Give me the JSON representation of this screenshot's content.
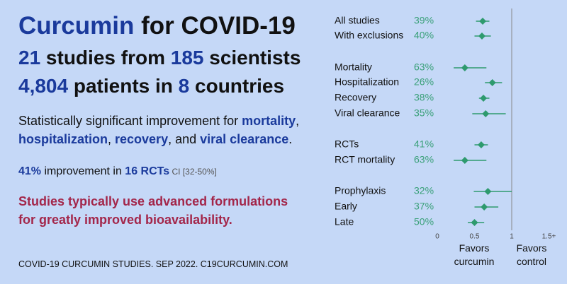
{
  "summary": {
    "title": [
      "Curcumin",
      " for COVID-19"
    ],
    "studies": [
      "21",
      " studies from ",
      "185",
      " scientists"
    ],
    "patients": [
      "4,804",
      " patients in ",
      "8",
      " countries"
    ],
    "finding": [
      "Statistically significant improvement for ",
      "mortality",
      ", ",
      "hospitalization",
      ", ",
      "recovery",
      ", and ",
      "viral clearance",
      "."
    ],
    "rct": [
      "41%",
      " improvement in ",
      "16 RCTs",
      " CI [32-50%]"
    ],
    "note": "Studies typically use advanced formulations for greatly improved bioavailability.",
    "footer": "COVID-19 CURCUMIN STUDIES. SEP 2022. C19CURCUMIN.COM"
  },
  "chart_data": {
    "type": "forest",
    "color": "#2e9a6e",
    "rows": [
      {
        "label": "All studies",
        "improvement": "39%",
        "value": 0.61,
        "ci": [
          0.52,
          0.7
        ]
      },
      {
        "label": "With exclusions",
        "improvement": "40%",
        "value": 0.6,
        "ci": [
          0.5,
          0.72
        ]
      },
      {
        "label": "Mortality",
        "improvement": "63%",
        "value": 0.37,
        "ci": [
          0.22,
          0.66
        ]
      },
      {
        "label": "Hospitalization",
        "improvement": "26%",
        "value": 0.74,
        "ci": [
          0.64,
          0.87
        ]
      },
      {
        "label": "Recovery",
        "improvement": "38%",
        "value": 0.62,
        "ci": [
          0.56,
          0.7
        ]
      },
      {
        "label": "Viral clearance",
        "improvement": "35%",
        "value": 0.65,
        "ci": [
          0.47,
          0.92
        ]
      },
      {
        "label": "RCTs",
        "improvement": "41%",
        "value": 0.59,
        "ci": [
          0.5,
          0.68
        ]
      },
      {
        "label": "RCT mortality",
        "improvement": "63%",
        "value": 0.37,
        "ci": [
          0.22,
          0.66
        ]
      },
      {
        "label": "Prophylaxis",
        "improvement": "32%",
        "value": 0.68,
        "ci": [
          0.49,
          1.0
        ]
      },
      {
        "label": "Early",
        "improvement": "37%",
        "value": 0.63,
        "ci": [
          0.5,
          0.82
        ]
      },
      {
        "label": "Late",
        "improvement": "50%",
        "value": 0.5,
        "ci": [
          0.41,
          0.63
        ]
      }
    ],
    "xlim": [
      0,
      1.5
    ],
    "xticks": [
      0,
      0.5,
      1,
      {
        "value": 1.5,
        "label": "1.5+"
      }
    ],
    "annotations": [
      "Favors curcumin",
      "Favors control"
    ]
  }
}
